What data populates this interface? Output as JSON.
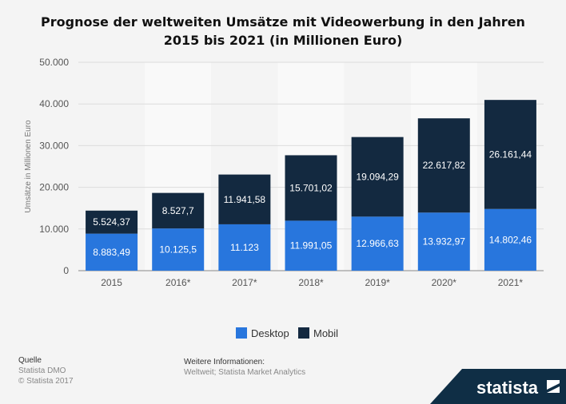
{
  "chart_data": {
    "type": "bar",
    "stacked": true,
    "title_line1": "Prognose der weltweiten Umsätze mit Videowerbung in den Jahren",
    "title_line2": "2015 bis 2021 (in Millionen Euro)",
    "ylabel": "Umsätze in Millionen Euro",
    "xlabel": "",
    "ylim": [
      0,
      50000
    ],
    "yticks": [
      0,
      10000,
      20000,
      30000,
      40000,
      50000
    ],
    "ytick_labels": [
      "0",
      "10.000",
      "20.000",
      "30.000",
      "40.000",
      "50.000"
    ],
    "categories": [
      "2015",
      "2016*",
      "2017*",
      "2018*",
      "2019*",
      "2020*",
      "2021*"
    ],
    "series": [
      {
        "name": "Desktop",
        "color": "#2876dd",
        "values": [
          8883.49,
          10125.5,
          11123,
          11991.05,
          12966.63,
          13932.97,
          14802.46
        ],
        "labels": [
          "8.883,49",
          "10.125,5",
          "11.123",
          "11.991,05",
          "12.966,63",
          "13.932,97",
          "14.802,46"
        ]
      },
      {
        "name": "Mobil",
        "color": "#132940",
        "values": [
          5524.37,
          8527.7,
          11941.58,
          15701.02,
          19094.29,
          22617.82,
          26161.44
        ],
        "labels": [
          "5.524,37",
          "8.527,7",
          "11.941,58",
          "15.701,02",
          "19.094,29",
          "22.617,82",
          "26.161,44"
        ]
      }
    ],
    "legend_position": "bottom-center",
    "grid": true
  },
  "footer": {
    "source_heading": "Quelle",
    "source_lines": [
      "Statista DMO",
      "© Statista 2017"
    ],
    "info_heading": "Weitere Informationen:",
    "info_text": "Weltweit; Statista Market Analytics"
  },
  "logo": {
    "text": "statista",
    "bg_color": "#0f2e45"
  }
}
